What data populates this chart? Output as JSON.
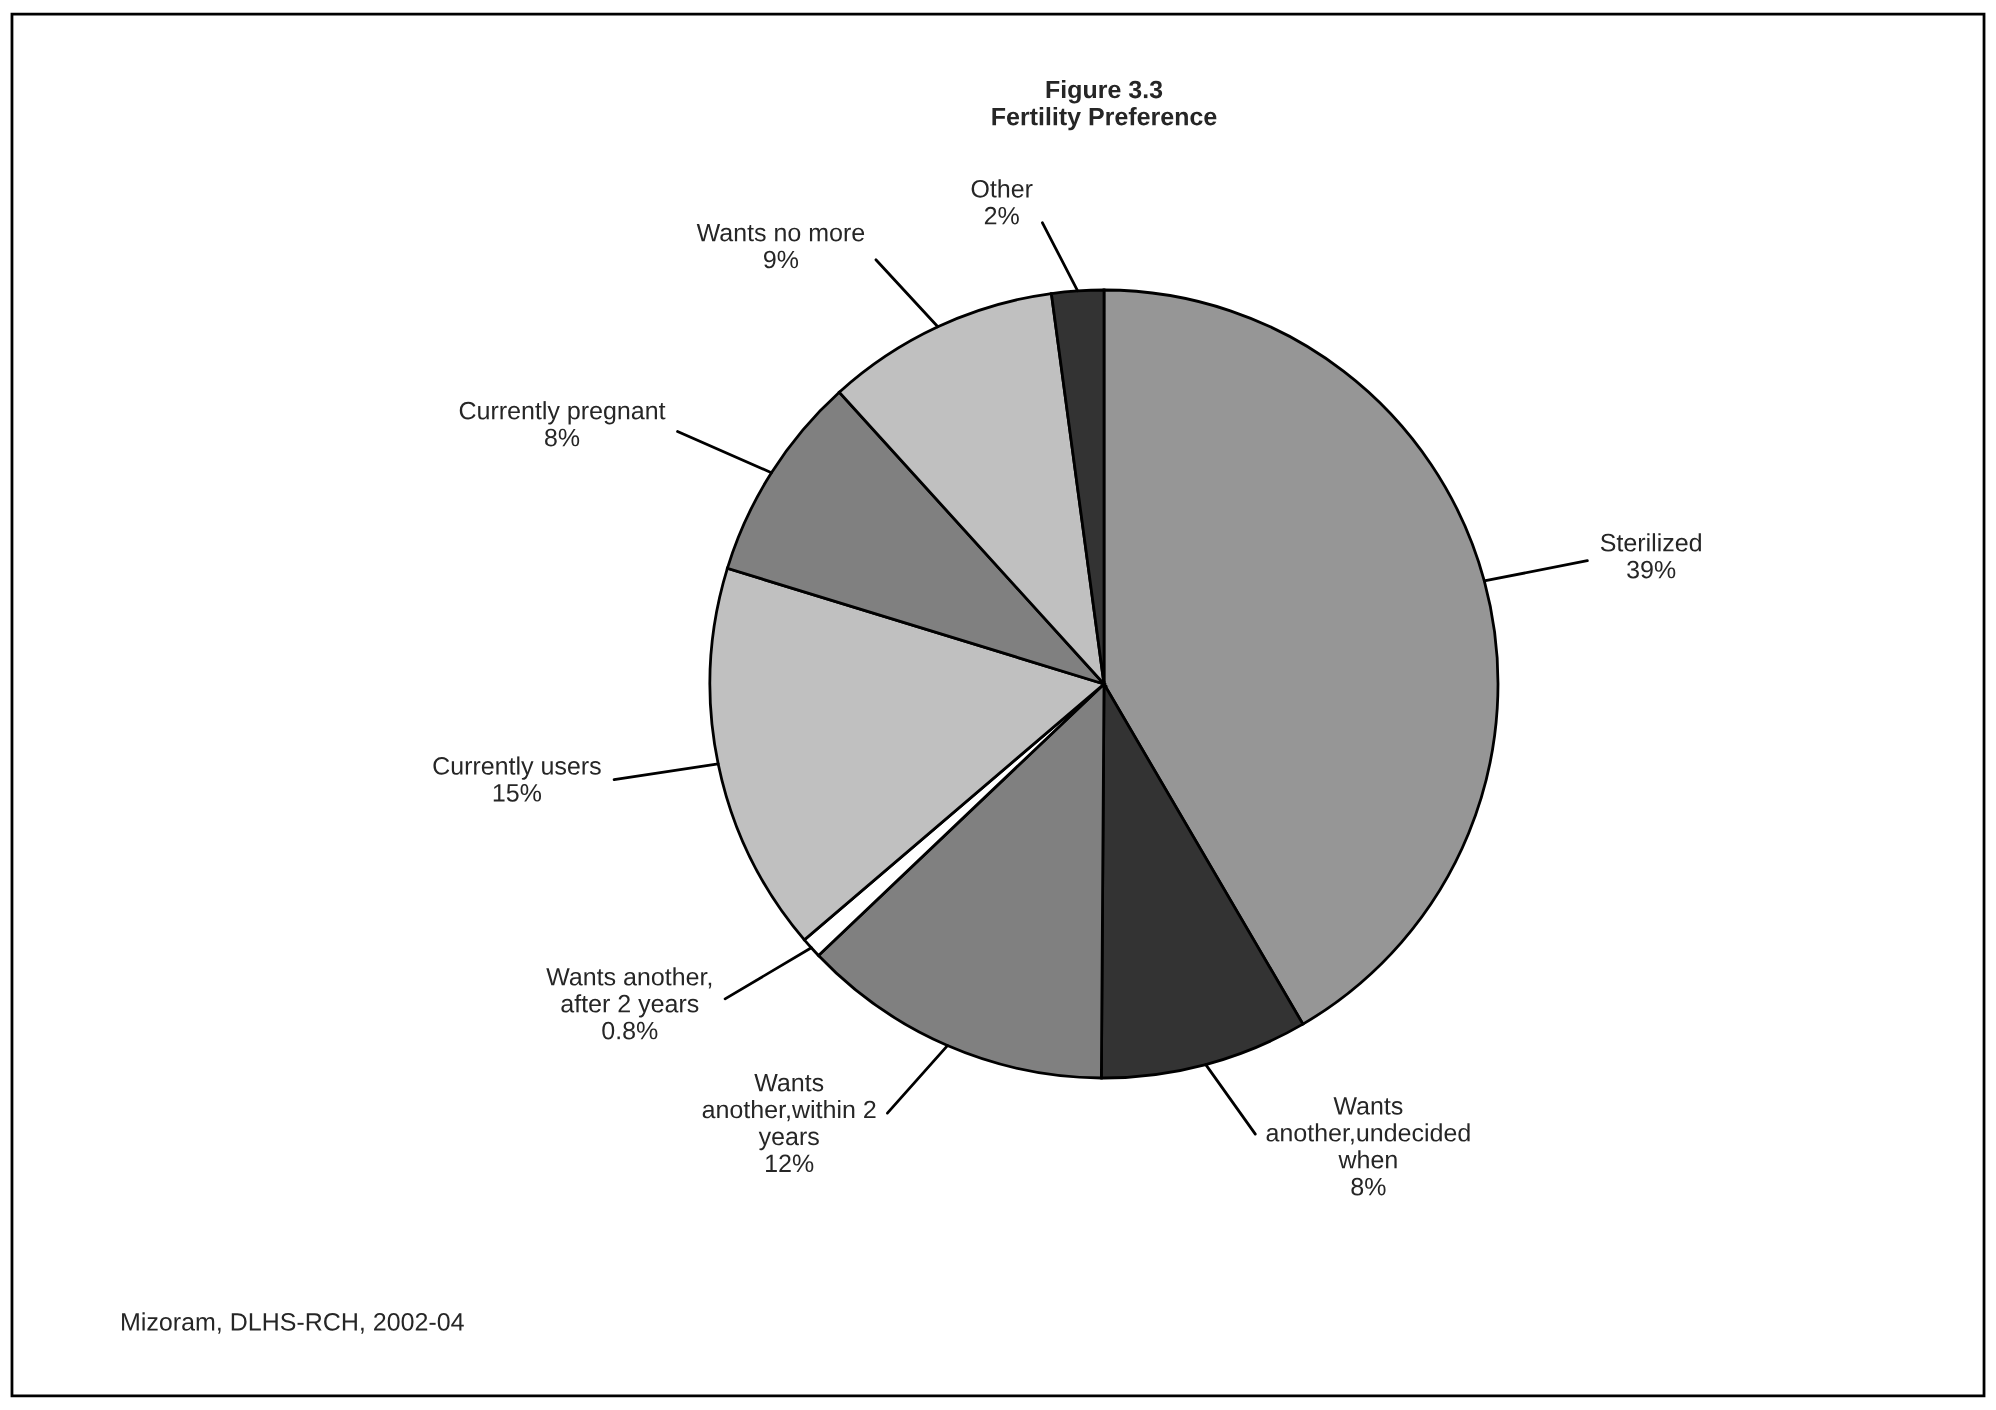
{
  "chart_data": {
    "type": "pie",
    "title": "Figure 3.3\nFertility Preference",
    "categories": [
      "Sterilized",
      "Wants\nanother,undecided\nwhen",
      "Wants\nanother,within 2\nyears",
      "Wants another,\nafter 2 years",
      "Currently users",
      "Currently pregnant",
      "Wants no more",
      "Other"
    ],
    "values": [
      39,
      8,
      12,
      0.8,
      15,
      8,
      9,
      2
    ],
    "value_labels": [
      "39%",
      "8%",
      "12%",
      "0.8%",
      "15%",
      "8%",
      "9%",
      "2%"
    ],
    "colors": [
      "#969696",
      "#333333",
      "#808080",
      "#ffffff",
      "#c0c0c0",
      "#808080",
      "#c0c0c0",
      "#333333"
    ],
    "annotations": [
      "Mizoram, DLHS-RCH, 2002-04"
    ]
  }
}
